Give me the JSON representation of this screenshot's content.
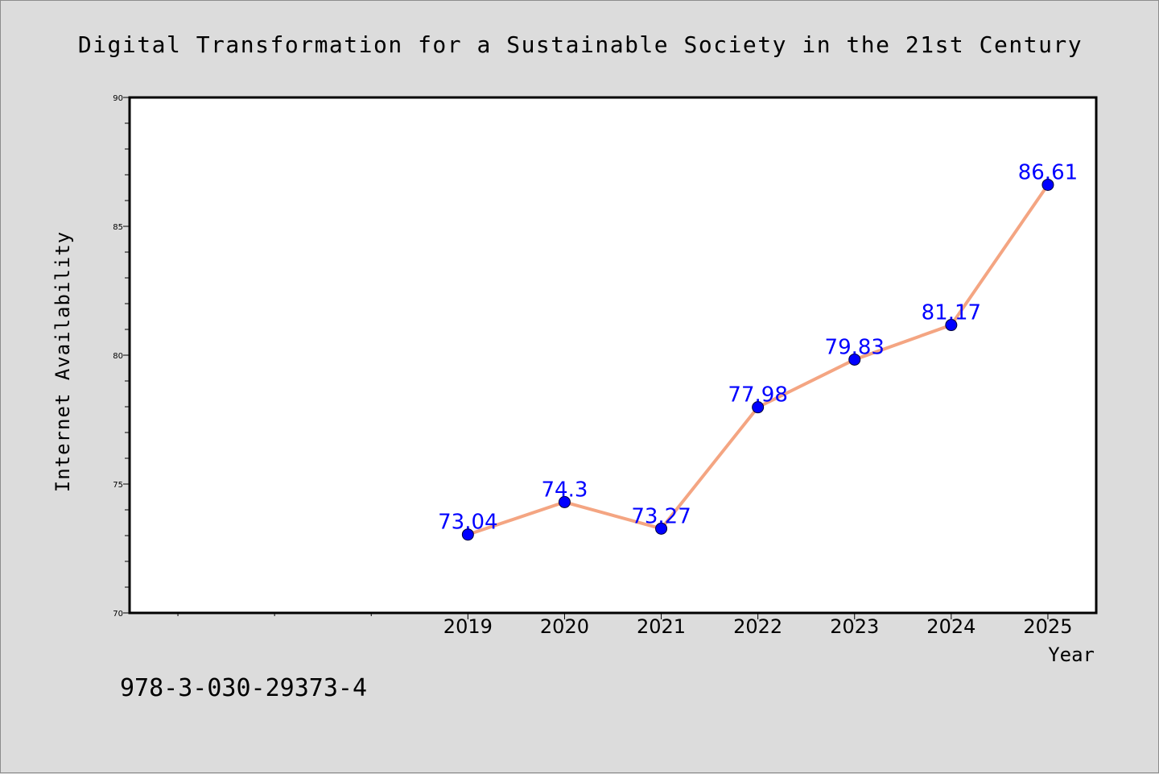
{
  "chart_data": {
    "type": "line",
    "title": "Digital Transformation for a Sustainable Society in the 21st Century",
    "xlabel": "Year",
    "ylabel": "Internet Availability",
    "categories": [
      "2019",
      "2020",
      "2021",
      "2022",
      "2023",
      "2024",
      "2025"
    ],
    "x_range": [
      2015.5,
      2025.5
    ],
    "series": [
      {
        "values": [
          73.04,
          74.3,
          73.27,
          77.98,
          79.83,
          81.17,
          86.61
        ]
      }
    ],
    "data_labels": [
      "73.04",
      "74.3",
      "73.27",
      "77.98",
      "79.83",
      "81.17",
      "86.61"
    ],
    "ylim": [
      70,
      90
    ],
    "y_ticks": [
      "70",
      "75",
      "80",
      "85",
      "90"
    ],
    "grid": false,
    "line_color": "#f4a582",
    "marker_color": "#0000ff",
    "label_color": "#0000ff"
  },
  "footer": {
    "isbn": "978-3-030-29373-4"
  }
}
